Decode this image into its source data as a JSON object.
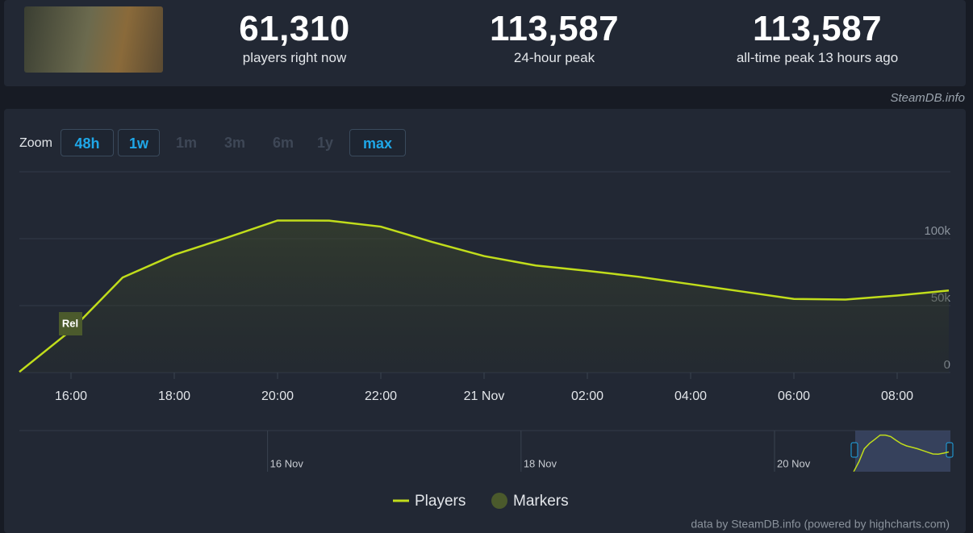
{
  "header": {
    "stats": [
      {
        "value": "61,310",
        "label": "players right now"
      },
      {
        "value": "113,587",
        "label": "24-hour peak"
      },
      {
        "value": "113,587",
        "label": "all-time peak 13 hours ago"
      }
    ]
  },
  "source": "SteamDB.info",
  "zoom": {
    "label": "Zoom",
    "buttons": [
      {
        "text": "48h",
        "enabled": true
      },
      {
        "text": "1w",
        "enabled": true
      },
      {
        "text": "1m",
        "enabled": false
      },
      {
        "text": "3m",
        "enabled": false
      },
      {
        "text": "6m",
        "enabled": false
      },
      {
        "text": "1y",
        "enabled": false
      },
      {
        "text": "max",
        "enabled": true
      }
    ]
  },
  "chart_data": {
    "type": "line",
    "x": [
      "20 Nov 15:00",
      "20 Nov 16:00",
      "20 Nov 17:00",
      "20 Nov 18:00",
      "20 Nov 19:00",
      "20 Nov 20:00",
      "20 Nov 21:00",
      "20 Nov 22:00",
      "20 Nov 23:00",
      "21 Nov 00:00",
      "21 Nov 01:00",
      "21 Nov 02:00",
      "21 Nov 03:00",
      "21 Nov 04:00",
      "21 Nov 05:00",
      "21 Nov 06:00",
      "21 Nov 07:00",
      "21 Nov 08:00",
      "21 Nov 09:00"
    ],
    "series": [
      {
        "name": "Players",
        "color": "#c1dd1b",
        "values": [
          500,
          31500,
          71000,
          88000,
          100500,
          113587,
          113500,
          109000,
          97500,
          87000,
          80000,
          76000,
          71500,
          66000,
          60500,
          55000,
          54500,
          57500,
          61310
        ]
      }
    ],
    "markers": {
      "name": "Markers",
      "color": "#4b5a2c",
      "items": [
        {
          "x": "20 Nov 16:00",
          "label": "Rel"
        }
      ]
    },
    "xlim": [
      "20 Nov 15:00",
      "21 Nov 09:00"
    ],
    "xticks": [
      {
        "value": "20 Nov 16:00",
        "label": "16:00"
      },
      {
        "value": "20 Nov 18:00",
        "label": "18:00"
      },
      {
        "value": "20 Nov 20:00",
        "label": "20:00"
      },
      {
        "value": "20 Nov 22:00",
        "label": "22:00"
      },
      {
        "value": "21 Nov 00:00",
        "label": "21 Nov"
      },
      {
        "value": "21 Nov 02:00",
        "label": "02:00"
      },
      {
        "value": "21 Nov 04:00",
        "label": "04:00"
      },
      {
        "value": "21 Nov 06:00",
        "label": "06:00"
      },
      {
        "value": "21 Nov 08:00",
        "label": "08:00"
      }
    ],
    "ylim": [
      0,
      150000
    ],
    "yticks": [
      0,
      {
        "value": 50000,
        "label": "50k"
      },
      {
        "value": 100000,
        "label": "100k"
      }
    ],
    "grid": true,
    "navigator": {
      "xlim": [
        "14 Nov 01:00",
        "21 Nov 09:00"
      ],
      "xticks": [
        {
          "value": "16 Nov 00:00",
          "label": "16 Nov"
        },
        {
          "value": "18 Nov 00:00",
          "label": "18 Nov"
        },
        {
          "value": "20 Nov 00:00",
          "label": "20 Nov"
        }
      ]
    }
  },
  "credits": "data by SteamDB.info (powered by highcharts.com)"
}
